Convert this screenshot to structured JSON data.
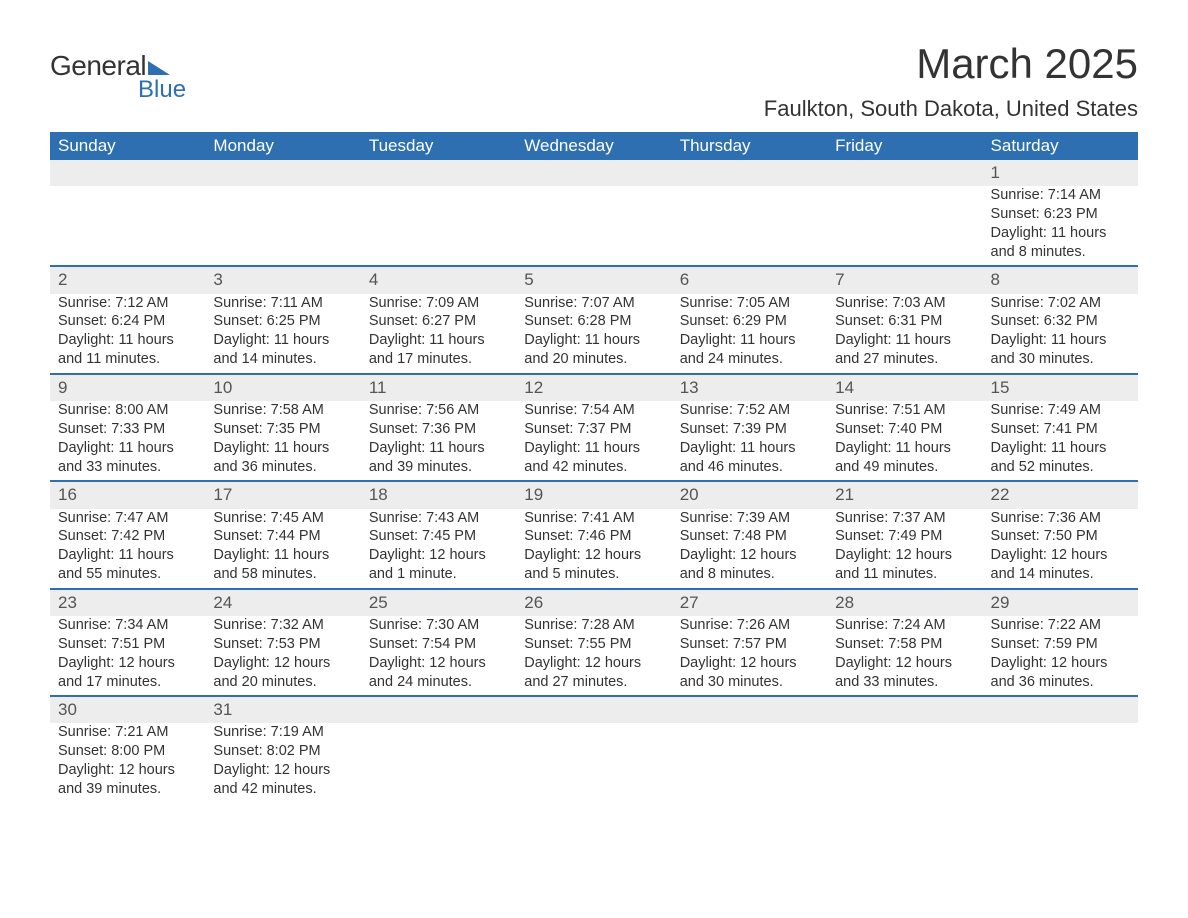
{
  "logo": {
    "text_general": "General",
    "text_blue": "Blue",
    "shape_color": "#2d6fb0"
  },
  "title": "March 2025",
  "location": "Faulkton, South Dakota, United States",
  "colors": {
    "header_bg": "#2d6fb0",
    "header_text": "#ffffff",
    "daynum_bg": "#ededed",
    "row_border": "#2d6fb0",
    "text": "#333333"
  },
  "day_headers": [
    "Sunday",
    "Monday",
    "Tuesday",
    "Wednesday",
    "Thursday",
    "Friday",
    "Saturday"
  ],
  "weeks": [
    [
      null,
      null,
      null,
      null,
      null,
      null,
      {
        "n": "1",
        "sr": "Sunrise: 7:14 AM",
        "ss": "Sunset: 6:23 PM",
        "d1": "Daylight: 11 hours",
        "d2": "and 8 minutes."
      }
    ],
    [
      {
        "n": "2",
        "sr": "Sunrise: 7:12 AM",
        "ss": "Sunset: 6:24 PM",
        "d1": "Daylight: 11 hours",
        "d2": "and 11 minutes."
      },
      {
        "n": "3",
        "sr": "Sunrise: 7:11 AM",
        "ss": "Sunset: 6:25 PM",
        "d1": "Daylight: 11 hours",
        "d2": "and 14 minutes."
      },
      {
        "n": "4",
        "sr": "Sunrise: 7:09 AM",
        "ss": "Sunset: 6:27 PM",
        "d1": "Daylight: 11 hours",
        "d2": "and 17 minutes."
      },
      {
        "n": "5",
        "sr": "Sunrise: 7:07 AM",
        "ss": "Sunset: 6:28 PM",
        "d1": "Daylight: 11 hours",
        "d2": "and 20 minutes."
      },
      {
        "n": "6",
        "sr": "Sunrise: 7:05 AM",
        "ss": "Sunset: 6:29 PM",
        "d1": "Daylight: 11 hours",
        "d2": "and 24 minutes."
      },
      {
        "n": "7",
        "sr": "Sunrise: 7:03 AM",
        "ss": "Sunset: 6:31 PM",
        "d1": "Daylight: 11 hours",
        "d2": "and 27 minutes."
      },
      {
        "n": "8",
        "sr": "Sunrise: 7:02 AM",
        "ss": "Sunset: 6:32 PM",
        "d1": "Daylight: 11 hours",
        "d2": "and 30 minutes."
      }
    ],
    [
      {
        "n": "9",
        "sr": "Sunrise: 8:00 AM",
        "ss": "Sunset: 7:33 PM",
        "d1": "Daylight: 11 hours",
        "d2": "and 33 minutes."
      },
      {
        "n": "10",
        "sr": "Sunrise: 7:58 AM",
        "ss": "Sunset: 7:35 PM",
        "d1": "Daylight: 11 hours",
        "d2": "and 36 minutes."
      },
      {
        "n": "11",
        "sr": "Sunrise: 7:56 AM",
        "ss": "Sunset: 7:36 PM",
        "d1": "Daylight: 11 hours",
        "d2": "and 39 minutes."
      },
      {
        "n": "12",
        "sr": "Sunrise: 7:54 AM",
        "ss": "Sunset: 7:37 PM",
        "d1": "Daylight: 11 hours",
        "d2": "and 42 minutes."
      },
      {
        "n": "13",
        "sr": "Sunrise: 7:52 AM",
        "ss": "Sunset: 7:39 PM",
        "d1": "Daylight: 11 hours",
        "d2": "and 46 minutes."
      },
      {
        "n": "14",
        "sr": "Sunrise: 7:51 AM",
        "ss": "Sunset: 7:40 PM",
        "d1": "Daylight: 11 hours",
        "d2": "and 49 minutes."
      },
      {
        "n": "15",
        "sr": "Sunrise: 7:49 AM",
        "ss": "Sunset: 7:41 PM",
        "d1": "Daylight: 11 hours",
        "d2": "and 52 minutes."
      }
    ],
    [
      {
        "n": "16",
        "sr": "Sunrise: 7:47 AM",
        "ss": "Sunset: 7:42 PM",
        "d1": "Daylight: 11 hours",
        "d2": "and 55 minutes."
      },
      {
        "n": "17",
        "sr": "Sunrise: 7:45 AM",
        "ss": "Sunset: 7:44 PM",
        "d1": "Daylight: 11 hours",
        "d2": "and 58 minutes."
      },
      {
        "n": "18",
        "sr": "Sunrise: 7:43 AM",
        "ss": "Sunset: 7:45 PM",
        "d1": "Daylight: 12 hours",
        "d2": "and 1 minute."
      },
      {
        "n": "19",
        "sr": "Sunrise: 7:41 AM",
        "ss": "Sunset: 7:46 PM",
        "d1": "Daylight: 12 hours",
        "d2": "and 5 minutes."
      },
      {
        "n": "20",
        "sr": "Sunrise: 7:39 AM",
        "ss": "Sunset: 7:48 PM",
        "d1": "Daylight: 12 hours",
        "d2": "and 8 minutes."
      },
      {
        "n": "21",
        "sr": "Sunrise: 7:37 AM",
        "ss": "Sunset: 7:49 PM",
        "d1": "Daylight: 12 hours",
        "d2": "and 11 minutes."
      },
      {
        "n": "22",
        "sr": "Sunrise: 7:36 AM",
        "ss": "Sunset: 7:50 PM",
        "d1": "Daylight: 12 hours",
        "d2": "and 14 minutes."
      }
    ],
    [
      {
        "n": "23",
        "sr": "Sunrise: 7:34 AM",
        "ss": "Sunset: 7:51 PM",
        "d1": "Daylight: 12 hours",
        "d2": "and 17 minutes."
      },
      {
        "n": "24",
        "sr": "Sunrise: 7:32 AM",
        "ss": "Sunset: 7:53 PM",
        "d1": "Daylight: 12 hours",
        "d2": "and 20 minutes."
      },
      {
        "n": "25",
        "sr": "Sunrise: 7:30 AM",
        "ss": "Sunset: 7:54 PM",
        "d1": "Daylight: 12 hours",
        "d2": "and 24 minutes."
      },
      {
        "n": "26",
        "sr": "Sunrise: 7:28 AM",
        "ss": "Sunset: 7:55 PM",
        "d1": "Daylight: 12 hours",
        "d2": "and 27 minutes."
      },
      {
        "n": "27",
        "sr": "Sunrise: 7:26 AM",
        "ss": "Sunset: 7:57 PM",
        "d1": "Daylight: 12 hours",
        "d2": "and 30 minutes."
      },
      {
        "n": "28",
        "sr": "Sunrise: 7:24 AM",
        "ss": "Sunset: 7:58 PM",
        "d1": "Daylight: 12 hours",
        "d2": "and 33 minutes."
      },
      {
        "n": "29",
        "sr": "Sunrise: 7:22 AM",
        "ss": "Sunset: 7:59 PM",
        "d1": "Daylight: 12 hours",
        "d2": "and 36 minutes."
      }
    ],
    [
      {
        "n": "30",
        "sr": "Sunrise: 7:21 AM",
        "ss": "Sunset: 8:00 PM",
        "d1": "Daylight: 12 hours",
        "d2": "and 39 minutes."
      },
      {
        "n": "31",
        "sr": "Sunrise: 7:19 AM",
        "ss": "Sunset: 8:02 PM",
        "d1": "Daylight: 12 hours",
        "d2": "and 42 minutes."
      },
      null,
      null,
      null,
      null,
      null
    ]
  ]
}
